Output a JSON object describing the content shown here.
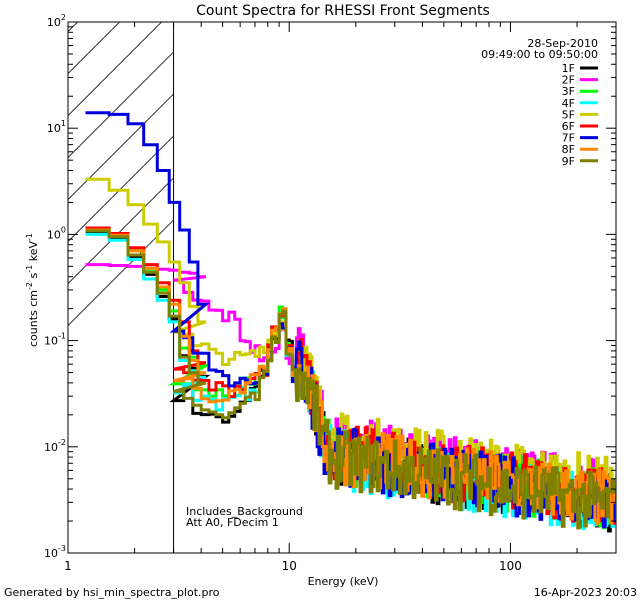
{
  "chart_data": {
    "type": "line",
    "title": "Count Spectra for RHESSI Front Segments",
    "xlabel": "Energy (keV)",
    "ylabel_parts": [
      "counts cm",
      "-2",
      " s",
      "-1",
      " keV",
      "-1"
    ],
    "xscale": "log",
    "yscale": "log",
    "xlim": [
      1,
      300
    ],
    "ylim": [
      0.001,
      100
    ],
    "x_ticks": [
      {
        "value": 1,
        "label": "1"
      },
      {
        "value": 10,
        "label": "10"
      },
      {
        "value": 100,
        "label": "100"
      }
    ],
    "y_ticks": [
      {
        "value": 0.001,
        "base": "10",
        "exp": "-3"
      },
      {
        "value": 0.01,
        "base": "10",
        "exp": "-2"
      },
      {
        "value": 0.1,
        "base": "10",
        "exp": "-1"
      },
      {
        "value": 1,
        "base": "10",
        "exp": "0"
      },
      {
        "value": 10,
        "base": "10",
        "exp": "1"
      },
      {
        "value": 100,
        "base": "10",
        "exp": "2"
      }
    ],
    "header_text": [
      "28-Sep-2010",
      "09:49:00 to 09:50:00"
    ],
    "annotations": [
      "Includes_Background",
      "Att A0, FDecim 1"
    ],
    "hatched_region_xmax": 3,
    "footer_left": "Generated by hsi_min_spectra_plot.pro",
    "footer_right": "16-Apr-2023 20:03",
    "series": [
      {
        "name": "1F",
        "color": "#000000",
        "low_values": [
          1.05,
          0.92,
          0.62,
          0.42,
          0.26,
          0.16,
          0.072,
          0.055,
          0.046
        ],
        "mid_values": [
          0.032,
          0.022,
          0.019,
          0.018,
          0.02,
          0.026,
          0.034,
          0.05,
          0.08,
          0.12,
          0.17,
          0.09,
          0.05
        ],
        "tail_scale": 1.0
      },
      {
        "name": "2F",
        "color": "#ff00ff",
        "low_values": [
          0.52,
          0.51,
          0.5,
          0.48,
          0.47,
          0.46,
          0.44,
          0.43,
          0.4
        ],
        "mid_values": [
          0.33,
          0.27,
          0.22,
          0.18,
          0.14,
          0.11,
          0.085,
          0.07,
          0.07,
          0.08,
          0.13,
          0.07,
          0.045
        ],
        "tail_scale": 1.3
      },
      {
        "name": "3F",
        "color": "#00ff00",
        "low_values": [
          1.12,
          1.0,
          0.72,
          0.47,
          0.3,
          0.19,
          0.085,
          0.07,
          0.058
        ],
        "mid_values": [
          0.045,
          0.036,
          0.033,
          0.034,
          0.036,
          0.04,
          0.045,
          0.055,
          0.08,
          0.12,
          0.18,
          0.09,
          0.05
        ],
        "tail_scale": 1.05
      },
      {
        "name": "4F",
        "color": "#00ffff",
        "low_values": [
          1.0,
          0.88,
          0.58,
          0.38,
          0.24,
          0.15,
          0.065,
          0.052,
          0.045
        ],
        "mid_values": [
          0.036,
          0.029,
          0.026,
          0.026,
          0.028,
          0.032,
          0.038,
          0.05,
          0.075,
          0.11,
          0.16,
          0.085,
          0.048
        ],
        "tail_scale": 0.95
      },
      {
        "name": "5F",
        "color": "#cccc00",
        "low_values": [
          3.3,
          2.6,
          1.9,
          1.25,
          0.85,
          0.55,
          0.35,
          0.21,
          0.15
        ],
        "mid_values": [
          0.11,
          0.085,
          0.075,
          0.07,
          0.068,
          0.07,
          0.073,
          0.08,
          0.1,
          0.13,
          0.15,
          0.08,
          0.05
        ],
        "tail_scale": 1.4
      },
      {
        "name": "6F",
        "color": "#ff0000",
        "low_values": [
          1.15,
          1.02,
          0.75,
          0.52,
          0.35,
          0.24,
          0.15,
          0.08,
          0.062
        ],
        "mid_values": [
          0.048,
          0.04,
          0.036,
          0.035,
          0.037,
          0.04,
          0.046,
          0.055,
          0.08,
          0.12,
          0.17,
          0.085,
          0.05
        ],
        "tail_scale": 1.1
      },
      {
        "name": "7F",
        "color": "#0000dd",
        "low_values": [
          14.0,
          13.5,
          11.0,
          7.0,
          4.0,
          2.0,
          1.1,
          0.55,
          0.22
        ],
        "mid_values": [
          0.11,
          0.07,
          0.05,
          0.042,
          0.04,
          0.04,
          0.042,
          0.048,
          0.07,
          0.1,
          0.14,
          0.075,
          0.045
        ],
        "tail_scale": 1.0
      },
      {
        "name": "8F",
        "color": "#ff8800",
        "low_values": [
          1.1,
          0.98,
          0.7,
          0.48,
          0.32,
          0.22,
          0.11,
          0.065,
          0.05
        ],
        "mid_values": [
          0.04,
          0.033,
          0.03,
          0.03,
          0.032,
          0.036,
          0.042,
          0.052,
          0.078,
          0.12,
          0.18,
          0.09,
          0.05
        ],
        "tail_scale": 1.05
      },
      {
        "name": "9F",
        "color": "#808000",
        "low_values": [
          1.08,
          0.95,
          0.64,
          0.44,
          0.28,
          0.17,
          0.07,
          0.05,
          0.04
        ],
        "mid_values": [
          0.03,
          0.022,
          0.02,
          0.02,
          0.022,
          0.026,
          0.032,
          0.045,
          0.07,
          0.11,
          0.17,
          0.085,
          0.048
        ],
        "tail_scale": 0.95
      }
    ]
  }
}
